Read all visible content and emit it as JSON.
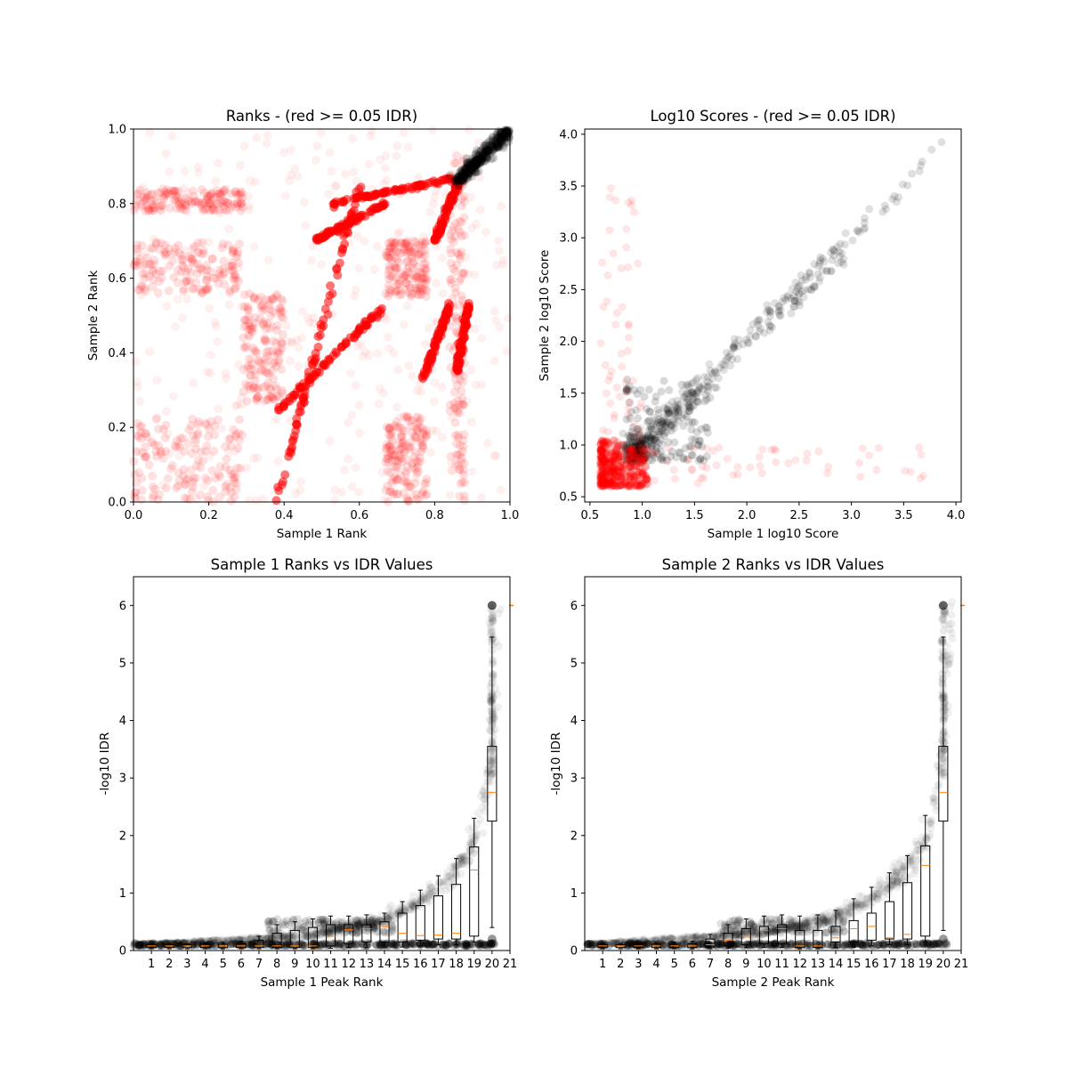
{
  "chart_data": [
    {
      "type": "scatter",
      "title": "Ranks - (red >= 0.05 IDR)",
      "xlabel": "Sample 1 Rank",
      "ylabel": "Sample 2 Rank",
      "xlim": [
        0,
        1
      ],
      "ylim": [
        0,
        1
      ],
      "xticks": [
        "0.0",
        "0.2",
        "0.4",
        "0.6",
        "0.8",
        "1.0"
      ],
      "yticks": [
        "0.0",
        "0.2",
        "0.4",
        "0.6",
        "0.8",
        "1.0"
      ],
      "grid": false,
      "colors": {
        "above_threshold": "#ff0000",
        "below_threshold": "#000000"
      },
      "series": [
        {
          "color": "#ff0000",
          "blocks": [
            {
              "x": [
                0.0,
                0.29
              ],
              "y": [
                0.0,
                0.23
              ]
            },
            {
              "x": [
                0.0,
                0.29
              ],
              "y": [
                0.56,
                0.7
              ]
            },
            {
              "x": [
                0.0,
                0.29
              ],
              "y": [
                0.78,
                0.84
              ]
            },
            {
              "x": [
                0.29,
                0.4
              ],
              "y": [
                0.27,
                0.56
              ]
            },
            {
              "x": [
                0.67,
                0.78
              ],
              "y": [
                0.0,
                0.23
              ]
            },
            {
              "x": [
                0.67,
                0.78
              ],
              "y": [
                0.55,
                0.7
              ]
            },
            {
              "x": [
                0.84,
                0.88
              ],
              "y": [
                0.0,
                0.95
              ]
            }
          ],
          "diagonal_segments": [
            {
              "x": [
                0.37,
                0.66
              ],
              "y": [
                0.23,
                0.52
              ]
            },
            {
              "x": [
                0.38,
                0.6
              ],
              "y": [
                0.0,
                0.85
              ]
            },
            {
              "x": [
                0.48,
                0.67
              ],
              "y": [
                0.7,
                0.8
              ]
            },
            {
              "x": [
                0.53,
                0.86
              ],
              "y": [
                0.8,
                0.87
              ]
            },
            {
              "x": [
                0.77,
                0.84
              ],
              "y": [
                0.33,
                0.53
              ]
            },
            {
              "x": [
                0.8,
                0.86
              ],
              "y": [
                0.7,
                0.85
              ]
            },
            {
              "x": [
                0.86,
                0.89
              ],
              "y": [
                0.35,
                0.53
              ]
            }
          ]
        },
        {
          "color": "#000000",
          "diagonal_segments": [
            {
              "x": [
                0.86,
                1.0
              ],
              "y": [
                0.86,
                1.0
              ]
            }
          ]
        }
      ]
    },
    {
      "type": "scatter",
      "title": "Log10 Scores - (red >= 0.05 IDR)",
      "xlabel": "Sample 1 log10 Score",
      "ylabel": "Sample 2 log10 Score",
      "xlim": [
        0.45,
        4.05
      ],
      "ylim": [
        0.45,
        4.05
      ],
      "xticks": [
        "0.5",
        "1.0",
        "1.5",
        "2.0",
        "2.5",
        "3.0",
        "3.5",
        "4.0"
      ],
      "yticks": [
        "0.5",
        "1.0",
        "1.5",
        "2.0",
        "2.5",
        "3.0",
        "3.5",
        "4.0"
      ],
      "grid": false,
      "colors": {
        "above_threshold": "#ff0000",
        "below_threshold": "#000000"
      },
      "series": [
        {
          "color": "#000000",
          "trend": {
            "x": [
              0.85,
              3.9
            ],
            "y": [
              0.85,
              3.9
            ]
          }
        },
        {
          "color": "#ff0000",
          "cluster": {
            "x": [
              0.6,
              1.1
            ],
            "y": [
              0.6,
              1.1
            ]
          }
        }
      ]
    },
    {
      "type": "box",
      "title": "Sample 1 Ranks vs IDR Values",
      "xlabel": "Sample 1 Peak Rank",
      "ylabel": "-log10 IDR",
      "xlim": [
        0,
        21
      ],
      "ylim": [
        0,
        6.5
      ],
      "xticks": [
        "1",
        "2",
        "3",
        "4",
        "5",
        "6",
        "7",
        "8",
        "9",
        "10",
        "11",
        "12",
        "13",
        "14",
        "15",
        "16",
        "17",
        "18",
        "19",
        "20",
        "21"
      ],
      "yticks": [
        "0",
        "1",
        "2",
        "3",
        "4",
        "5",
        "6"
      ],
      "grid": false,
      "colors": {
        "points": "#000000",
        "median": "#ff7f0e"
      },
      "boxes": [
        {
          "q1": 0.05,
          "median": 0.08,
          "q3": 0.1,
          "whisker_low": 0.03,
          "whisker_high": 0.12
        },
        {
          "q1": 0.05,
          "median": 0.08,
          "q3": 0.1,
          "whisker_low": 0.03,
          "whisker_high": 0.12
        },
        {
          "q1": 0.05,
          "median": 0.08,
          "q3": 0.1,
          "whisker_low": 0.03,
          "whisker_high": 0.12
        },
        {
          "q1": 0.05,
          "median": 0.08,
          "q3": 0.11,
          "whisker_low": 0.03,
          "whisker_high": 0.13
        },
        {
          "q1": 0.05,
          "median": 0.08,
          "q3": 0.11,
          "whisker_low": 0.03,
          "whisker_high": 0.14
        },
        {
          "q1": 0.05,
          "median": 0.08,
          "q3": 0.12,
          "whisker_low": 0.03,
          "whisker_high": 0.16
        },
        {
          "q1": 0.05,
          "median": 0.08,
          "q3": 0.18,
          "whisker_low": 0.03,
          "whisker_high": 0.25
        },
        {
          "q1": 0.05,
          "median": 0.08,
          "q3": 0.3,
          "whisker_low": 0.03,
          "whisker_high": 0.45
        },
        {
          "q1": 0.05,
          "median": 0.08,
          "q3": 0.35,
          "whisker_low": 0.03,
          "whisker_high": 0.5
        },
        {
          "q1": 0.05,
          "median": 0.08,
          "q3": 0.4,
          "whisker_low": 0.03,
          "whisker_high": 0.55
        },
        {
          "q1": 0.08,
          "median": 0.25,
          "q3": 0.45,
          "whisker_low": 0.04,
          "whisker_high": 0.6
        },
        {
          "q1": 0.12,
          "median": 0.36,
          "q3": 0.45,
          "whisker_low": 0.05,
          "whisker_high": 0.6
        },
        {
          "q1": 0.15,
          "median": 0.38,
          "q3": 0.45,
          "whisker_low": 0.05,
          "whisker_high": 0.62
        },
        {
          "q1": 0.15,
          "median": 0.42,
          "q3": 0.5,
          "whisker_low": 0.06,
          "whisker_high": 0.65
        },
        {
          "q1": 0.15,
          "median": 0.3,
          "q3": 0.65,
          "whisker_low": 0.06,
          "whisker_high": 0.85
        },
        {
          "q1": 0.18,
          "median": 0.26,
          "q3": 0.78,
          "whisker_low": 0.08,
          "whisker_high": 1.05
        },
        {
          "q1": 0.2,
          "median": 0.27,
          "q3": 0.95,
          "whisker_low": 0.1,
          "whisker_high": 1.3
        },
        {
          "q1": 0.2,
          "median": 0.3,
          "q3": 1.15,
          "whisker_low": 0.1,
          "whisker_high": 1.6
        },
        {
          "q1": 0.25,
          "median": 1.4,
          "q3": 1.8,
          "whisker_low": 0.15,
          "whisker_high": 2.3
        },
        {
          "q1": 2.25,
          "median": 2.75,
          "q3": 3.55,
          "whisker_low": 0.4,
          "whisker_high": 5.45
        }
      ],
      "curve": {
        "x": [
          0.0,
          10.0,
          14.0,
          16.0,
          17.0,
          18.0,
          19.0,
          19.5,
          20.0,
          20.5
        ],
        "y": [
          0.1,
          0.25,
          0.55,
          0.85,
          1.1,
          1.4,
          1.9,
          2.5,
          3.5,
          6.0
        ]
      }
    },
    {
      "type": "box",
      "title": "Sample 2 Ranks vs IDR Values",
      "xlabel": "Sample 2 Peak Rank",
      "ylabel": "-log10 IDR",
      "xlim": [
        0,
        21
      ],
      "ylim": [
        0,
        6.5
      ],
      "xticks": [
        "1",
        "2",
        "3",
        "4",
        "5",
        "6",
        "7",
        "8",
        "9",
        "10",
        "11",
        "12",
        "13",
        "14",
        "15",
        "16",
        "17",
        "18",
        "19",
        "20",
        "21"
      ],
      "yticks": [
        "0",
        "1",
        "2",
        "3",
        "4",
        "5",
        "6"
      ],
      "grid": false,
      "colors": {
        "points": "#000000",
        "median": "#ff7f0e"
      },
      "boxes": [
        {
          "q1": 0.05,
          "median": 0.08,
          "q3": 0.1,
          "whisker_low": 0.03,
          "whisker_high": 0.12
        },
        {
          "q1": 0.05,
          "median": 0.08,
          "q3": 0.1,
          "whisker_low": 0.03,
          "whisker_high": 0.12
        },
        {
          "q1": 0.05,
          "median": 0.08,
          "q3": 0.1,
          "whisker_low": 0.03,
          "whisker_high": 0.12
        },
        {
          "q1": 0.05,
          "median": 0.08,
          "q3": 0.11,
          "whisker_low": 0.03,
          "whisker_high": 0.13
        },
        {
          "q1": 0.05,
          "median": 0.08,
          "q3": 0.11,
          "whisker_low": 0.03,
          "whisker_high": 0.14
        },
        {
          "q1": 0.05,
          "median": 0.08,
          "q3": 0.12,
          "whisker_low": 0.03,
          "whisker_high": 0.16
        },
        {
          "q1": 0.06,
          "median": 0.1,
          "q3": 0.2,
          "whisker_low": 0.03,
          "whisker_high": 0.28
        },
        {
          "q1": 0.08,
          "median": 0.18,
          "q3": 0.3,
          "whisker_low": 0.04,
          "whisker_high": 0.45
        },
        {
          "q1": 0.1,
          "median": 0.25,
          "q3": 0.38,
          "whisker_low": 0.05,
          "whisker_high": 0.55
        },
        {
          "q1": 0.12,
          "median": 0.35,
          "q3": 0.42,
          "whisker_low": 0.05,
          "whisker_high": 0.6
        },
        {
          "q1": 0.12,
          "median": 0.38,
          "q3": 0.45,
          "whisker_low": 0.05,
          "whisker_high": 0.62
        },
        {
          "q1": 0.05,
          "median": 0.08,
          "q3": 0.35,
          "whisker_low": 0.03,
          "whisker_high": 0.6
        },
        {
          "q1": 0.05,
          "median": 0.08,
          "q3": 0.35,
          "whisker_low": 0.03,
          "whisker_high": 0.62
        },
        {
          "q1": 0.15,
          "median": 0.22,
          "q3": 0.42,
          "whisker_low": 0.05,
          "whisker_high": 0.7
        },
        {
          "q1": 0.15,
          "median": 0.38,
          "q3": 0.52,
          "whisker_low": 0.06,
          "whisker_high": 0.9
        },
        {
          "q1": 0.18,
          "median": 0.42,
          "q3": 0.65,
          "whisker_low": 0.08,
          "whisker_high": 1.1
        },
        {
          "q1": 0.2,
          "median": 0.22,
          "q3": 0.85,
          "whisker_low": 0.1,
          "whisker_high": 1.35
        },
        {
          "q1": 0.2,
          "median": 0.28,
          "q3": 1.18,
          "whisker_low": 0.1,
          "whisker_high": 1.65
        },
        {
          "q1": 0.25,
          "median": 1.48,
          "q3": 1.82,
          "whisker_low": 0.15,
          "whisker_high": 2.35
        },
        {
          "q1": 2.25,
          "median": 2.75,
          "q3": 3.55,
          "whisker_low": 0.35,
          "whisker_high": 5.45
        }
      ],
      "curve": {
        "x": [
          0.0,
          10.0,
          14.0,
          16.0,
          17.0,
          18.0,
          19.0,
          19.5,
          20.0,
          20.5
        ],
        "y": [
          0.1,
          0.3,
          0.6,
          0.9,
          1.15,
          1.45,
          1.95,
          2.5,
          3.5,
          6.0
        ]
      }
    }
  ]
}
